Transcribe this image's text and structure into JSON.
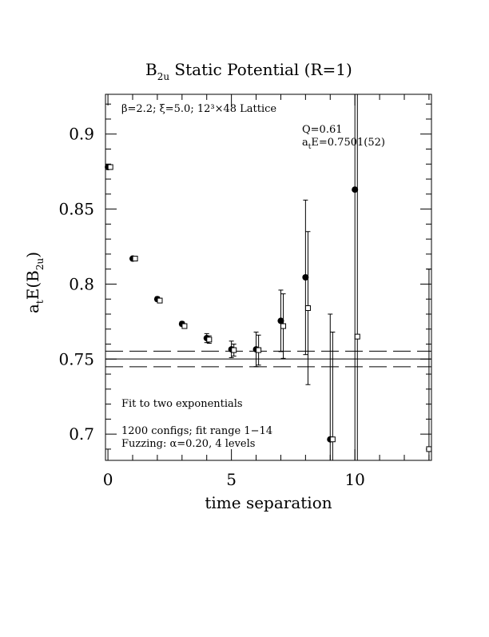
{
  "chart_data": {
    "type": "scatter",
    "title_main": "B",
    "title_sub": "2u",
    "title_rest": " Static Potential (R=1)",
    "xlabel": "time separation",
    "ylabel_main": "a",
    "ylabel_sub1": "t",
    "ylabel_mid": "E(B",
    "ylabel_sub2": "2u",
    "ylabel_end": ")",
    "xlim": [
      -0.1,
      13.1
    ],
    "ylim": [
      0.6825,
      0.9265
    ],
    "x_ticks": [
      0,
      5,
      10
    ],
    "x_tick_labels": [
      "0",
      "5",
      "10"
    ],
    "y_ticks": [
      0.7,
      0.75,
      0.8,
      0.85,
      0.9
    ],
    "y_tick_labels": [
      "0.7",
      "0.75",
      "0.8",
      "0.85",
      "0.9"
    ],
    "grid": false,
    "annotations": {
      "lattice": "β=2.2; ξ=5.0; 12³×48 Lattice",
      "q": "Q=0.61",
      "fit_value_main": "a",
      "fit_value_sub": "t",
      "fit_value_rest": "E=0.7501(52)",
      "fit_type": "Fit to two exponentials",
      "configs": "1200 configs; fit range 1−14",
      "fuzzing": "Fuzzing: α=0.20, 4 levels"
    },
    "fit": {
      "value": 0.7501,
      "upper": 0.7553,
      "lower": 0.7449
    },
    "series": [
      {
        "marker": "filled-circle",
        "points": [
          {
            "x": 0,
            "y": 0.878,
            "err": 0.0015
          },
          {
            "x": 1,
            "y": 0.817,
            "err": 0.001
          },
          {
            "x": 2,
            "y": 0.79,
            "err": 0.0015
          },
          {
            "x": 3,
            "y": 0.7735,
            "err": 0.0015
          },
          {
            "x": 4,
            "y": 0.764,
            "err": 0.003
          },
          {
            "x": 5,
            "y": 0.7565,
            "err": 0.0055
          },
          {
            "x": 6,
            "y": 0.7565,
            "err": 0.0115
          },
          {
            "x": 7,
            "y": 0.7755,
            "err": 0.0205
          },
          {
            "x": 8,
            "y": 0.8045,
            "err": 0.0515
          },
          {
            "x": 9,
            "y": 0.6965,
            "err": 0.0835
          },
          {
            "x": 10,
            "y": 0.863,
            "err": 0.27
          }
        ]
      },
      {
        "marker": "open-square",
        "points": [
          {
            "x": 0.1,
            "y": 0.878,
            "err": 0.001
          },
          {
            "x": 1.1,
            "y": 0.817,
            "err": 0.001
          },
          {
            "x": 2.1,
            "y": 0.789,
            "err": 0.0015
          },
          {
            "x": 3.1,
            "y": 0.772,
            "err": 0.0015
          },
          {
            "x": 4.1,
            "y": 0.763,
            "err": 0.0025
          },
          {
            "x": 5.1,
            "y": 0.756,
            "err": 0.004
          },
          {
            "x": 6.1,
            "y": 0.756,
            "err": 0.01
          },
          {
            "x": 7.1,
            "y": 0.772,
            "err": 0.0215
          },
          {
            "x": 8.1,
            "y": 0.784,
            "err": 0.051
          },
          {
            "x": 9.1,
            "y": 0.6965,
            "err": 0.0715
          },
          {
            "x": 10.1,
            "y": 0.765,
            "err": 0.26
          },
          {
            "x": 13.0,
            "y": 0.69,
            "err": 0.12
          }
        ]
      }
    ]
  }
}
